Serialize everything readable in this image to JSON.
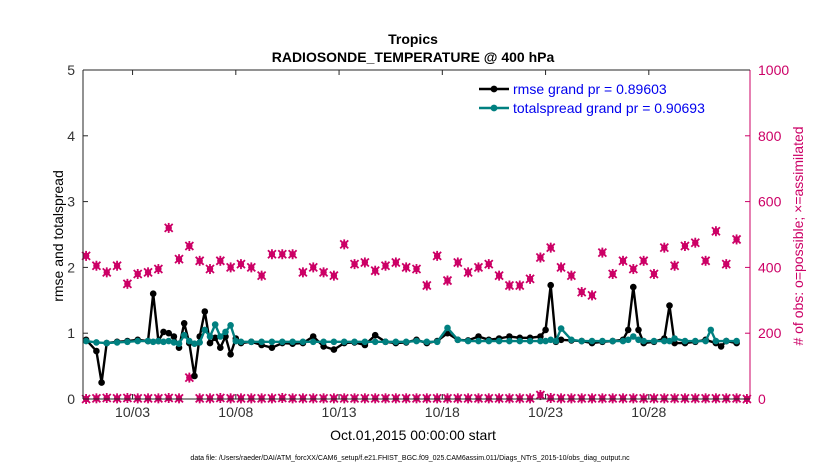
{
  "chart_data": {
    "type": "line",
    "title": "Tropics",
    "subtitle": "RADIOSONDE_TEMPERATURE @ 400 hPa",
    "xlabel": "Oct.01,2015 00:00:00 start",
    "ylabel": "rmse and totalspread",
    "ylabel_right": "# of obs: o=possible; ×=assimilated",
    "footer": "data file: /Users/raeder/DAI/ATM_forcXX/CAM6_setup/f.e21.FHIST_BGC.f09_025.CAM6assim.011/Diags_NTrS_2015-10/obs_diag_output.nc",
    "xlim": [
      0.6,
      32.9
    ],
    "ylim": [
      0,
      5
    ],
    "ylim_right": [
      0,
      1000
    ],
    "x_ticks": [
      3,
      8,
      13,
      18,
      23,
      28
    ],
    "x_tick_labels": [
      "10/03",
      "10/08",
      "10/13",
      "10/18",
      "10/23",
      "10/28"
    ],
    "y_ticks": [
      0,
      1,
      2,
      3,
      4,
      5
    ],
    "y_ticks_right": [
      0,
      200,
      400,
      600,
      800,
      1000
    ],
    "legend": [
      {
        "label": "rmse grand pr = 0.89603",
        "color": "#000000"
      },
      {
        "label": "totalspread grand pr = 0.90693",
        "color": "#008080"
      }
    ],
    "series": [
      {
        "name": "rmse",
        "axis": "left",
        "color": "#000000",
        "x": [
          0.75,
          1.25,
          1.5,
          1.75,
          2.25,
          2.75,
          3.25,
          3.75,
          4.0,
          4.25,
          4.5,
          4.75,
          5.0,
          5.25,
          5.5,
          5.75,
          6.0,
          6.25,
          6.5,
          6.75,
          7.0,
          7.25,
          7.5,
          7.75,
          8.0,
          8.25,
          8.75,
          9.25,
          9.75,
          10.25,
          10.75,
          11.25,
          11.75,
          12.25,
          12.75,
          13.25,
          13.75,
          14.25,
          14.75,
          15.25,
          15.75,
          16.25,
          16.75,
          17.25,
          17.75,
          18.25,
          18.75,
          19.25,
          19.75,
          20.25,
          20.75,
          21.25,
          21.75,
          22.25,
          22.75,
          23.0,
          23.25,
          23.5,
          23.75,
          24.25,
          24.75,
          25.25,
          25.75,
          26.25,
          26.75,
          27.0,
          27.25,
          27.5,
          27.75,
          28.25,
          28.75,
          29.0,
          29.25,
          29.75,
          30.25,
          30.75,
          31.25,
          31.5,
          31.75,
          32.25
        ],
        "values": [
          0.9,
          0.73,
          0.25,
          0.85,
          0.87,
          0.88,
          0.9,
          0.88,
          1.6,
          0.88,
          1.02,
          1.0,
          0.95,
          0.78,
          1.15,
          0.85,
          0.35,
          0.95,
          1.33,
          0.85,
          0.93,
          0.78,
          0.95,
          0.68,
          0.92,
          0.85,
          0.87,
          0.82,
          0.78,
          0.85,
          0.84,
          0.85,
          0.95,
          0.8,
          0.75,
          0.85,
          0.86,
          0.82,
          0.97,
          0.87,
          0.85,
          0.86,
          0.9,
          0.85,
          0.88,
          1.0,
          0.9,
          0.89,
          0.95,
          0.9,
          0.92,
          0.95,
          0.93,
          0.93,
          0.95,
          1.05,
          1.73,
          0.87,
          0.9,
          0.89,
          0.88,
          0.85,
          0.87,
          0.88,
          0.9,
          1.05,
          1.7,
          1.05,
          0.85,
          0.87,
          0.92,
          1.42,
          0.85,
          0.85,
          0.87,
          0.9,
          0.85,
          0.8,
          0.88,
          0.85
        ]
      },
      {
        "name": "totalspread",
        "axis": "left",
        "color": "#008080",
        "x": [
          0.75,
          1.25,
          1.75,
          2.25,
          2.75,
          3.25,
          3.75,
          4.0,
          4.25,
          4.5,
          4.75,
          5.0,
          5.25,
          5.5,
          5.75,
          6.0,
          6.25,
          6.5,
          6.75,
          7.0,
          7.25,
          7.5,
          7.75,
          8.0,
          8.25,
          8.75,
          9.25,
          9.75,
          10.25,
          10.75,
          11.25,
          11.75,
          12.25,
          12.75,
          13.25,
          13.75,
          14.25,
          14.75,
          15.25,
          15.75,
          16.25,
          16.75,
          17.25,
          17.75,
          18.25,
          18.75,
          19.25,
          19.75,
          20.25,
          20.75,
          21.25,
          21.75,
          22.25,
          22.75,
          23.0,
          23.25,
          23.5,
          23.75,
          24.25,
          24.75,
          25.25,
          25.75,
          26.25,
          26.75,
          27.0,
          27.25,
          27.5,
          27.75,
          28.25,
          28.75,
          29.0,
          29.25,
          29.75,
          30.25,
          30.75,
          31.0,
          31.25,
          31.75,
          32.25
        ],
        "values": [
          0.88,
          0.86,
          0.85,
          0.86,
          0.87,
          0.88,
          0.88,
          0.87,
          0.88,
          0.87,
          0.88,
          0.86,
          0.84,
          0.97,
          0.88,
          0.84,
          0.86,
          1.05,
          0.95,
          1.13,
          0.95,
          1.02,
          1.12,
          0.88,
          0.87,
          0.87,
          0.87,
          0.87,
          0.87,
          0.87,
          0.87,
          0.87,
          0.87,
          0.87,
          0.87,
          0.87,
          0.87,
          0.87,
          0.87,
          0.87,
          0.87,
          0.88,
          0.87,
          0.87,
          1.08,
          0.9,
          0.88,
          0.88,
          0.88,
          0.88,
          0.88,
          0.88,
          0.88,
          0.88,
          0.88,
          0.9,
          0.88,
          1.07,
          0.9,
          0.88,
          0.88,
          0.88,
          0.88,
          0.88,
          0.9,
          0.95,
          0.9,
          0.88,
          0.88,
          0.88,
          0.88,
          0.92,
          0.88,
          0.88,
          0.88,
          1.05,
          0.88,
          0.88,
          0.88
        ]
      },
      {
        "name": "obs possible",
        "axis": "right",
        "color": "#cc0066",
        "x": [
          0.75,
          1.25,
          1.75,
          2.25,
          2.75,
          3.25,
          3.75,
          4.25,
          4.75,
          5.25,
          5.75,
          6.25,
          6.75,
          7.25,
          7.75,
          8.25,
          8.75,
          9.25,
          9.75,
          10.25,
          10.75,
          11.25,
          11.75,
          12.25,
          12.75,
          13.25,
          13.75,
          14.25,
          14.75,
          15.25,
          15.75,
          16.25,
          16.75,
          17.25,
          17.75,
          18.25,
          18.75,
          19.25,
          19.75,
          20.25,
          20.75,
          21.25,
          21.75,
          22.25,
          22.75,
          23.25,
          23.75,
          24.25,
          24.75,
          25.25,
          25.75,
          26.25,
          26.75,
          27.25,
          27.75,
          28.25,
          28.75,
          29.25,
          29.75,
          30.25,
          30.75,
          31.25,
          31.75,
          32.25
        ],
        "values": [
          435,
          405,
          385,
          405,
          350,
          380,
          385,
          395,
          520,
          425,
          465,
          420,
          395,
          420,
          400,
          410,
          400,
          375,
          440,
          440,
          440,
          385,
          400,
          385,
          375,
          470,
          410,
          415,
          390,
          405,
          415,
          400,
          395,
          345,
          435,
          360,
          415,
          385,
          400,
          410,
          375,
          345,
          345,
          365,
          430,
          460,
          400,
          375,
          325,
          315,
          445,
          380,
          420,
          395,
          420,
          380,
          460,
          405,
          465,
          475,
          420,
          510,
          410,
          485
        ]
      },
      {
        "name": "obs assimilated",
        "axis": "right",
        "color": "#cc0066",
        "x": [
          0.75,
          1.25,
          1.75,
          2.25,
          2.75,
          3.25,
          3.75,
          4.25,
          4.75,
          5.25,
          5.75,
          6.25,
          6.75,
          7.25,
          7.75,
          8.25,
          8.75,
          9.25,
          9.75,
          10.25,
          10.75,
          11.25,
          11.75,
          12.25,
          12.75,
          13.25,
          13.75,
          14.25,
          14.75,
          15.25,
          15.75,
          16.25,
          16.75,
          17.25,
          17.75,
          18.25,
          18.75,
          19.25,
          19.75,
          20.25,
          20.75,
          21.25,
          21.75,
          22.25,
          22.75,
          23.25,
          23.75,
          24.25,
          24.75,
          25.25,
          25.75,
          26.25,
          26.75,
          27.25,
          27.75,
          28.25,
          28.75,
          29.25,
          29.75,
          30.25,
          30.75,
          31.25,
          31.75,
          32.25,
          32.75
        ],
        "values": [
          0,
          2,
          3,
          2,
          3,
          2,
          2,
          2,
          3,
          2,
          65,
          2,
          2,
          3,
          2,
          2,
          2,
          2,
          2,
          3,
          2,
          2,
          2,
          2,
          2,
          2,
          2,
          2,
          2,
          2,
          2,
          2,
          2,
          2,
          2,
          2,
          2,
          2,
          2,
          2,
          2,
          2,
          2,
          2,
          12,
          3,
          2,
          2,
          2,
          2,
          2,
          2,
          2,
          2,
          2,
          2,
          2,
          2,
          2,
          2,
          2,
          2,
          2,
          2,
          0
        ]
      }
    ]
  }
}
